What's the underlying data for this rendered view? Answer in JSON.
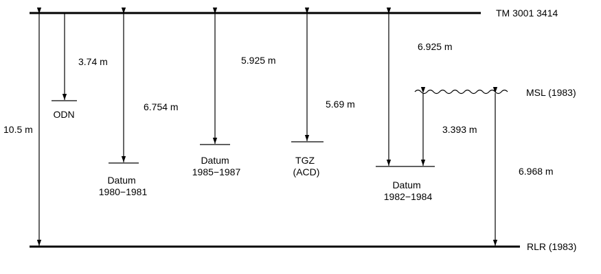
{
  "references": {
    "top": "TM 3001 3414",
    "bottom": "RLR (1983)",
    "msl": "MSL (1983)"
  },
  "datums": {
    "odn": "ODN",
    "d1980": [
      "Datum",
      "1980−1981"
    ],
    "d1985": [
      "Datum",
      "1985−1987"
    ],
    "tgz": [
      "TGZ",
      "(ACD)"
    ],
    "d1982": [
      "Datum",
      "1982−1984"
    ]
  },
  "measurements": {
    "total": "10.5 m",
    "odn": "3.74 m",
    "d1980": "6.754 m",
    "d1985": "5.925 m",
    "tgz": "5.69 m",
    "d1982": "6.925 m",
    "msl_above_1982": "3.393 m",
    "msl_above_rlr": "6.968 m"
  }
}
